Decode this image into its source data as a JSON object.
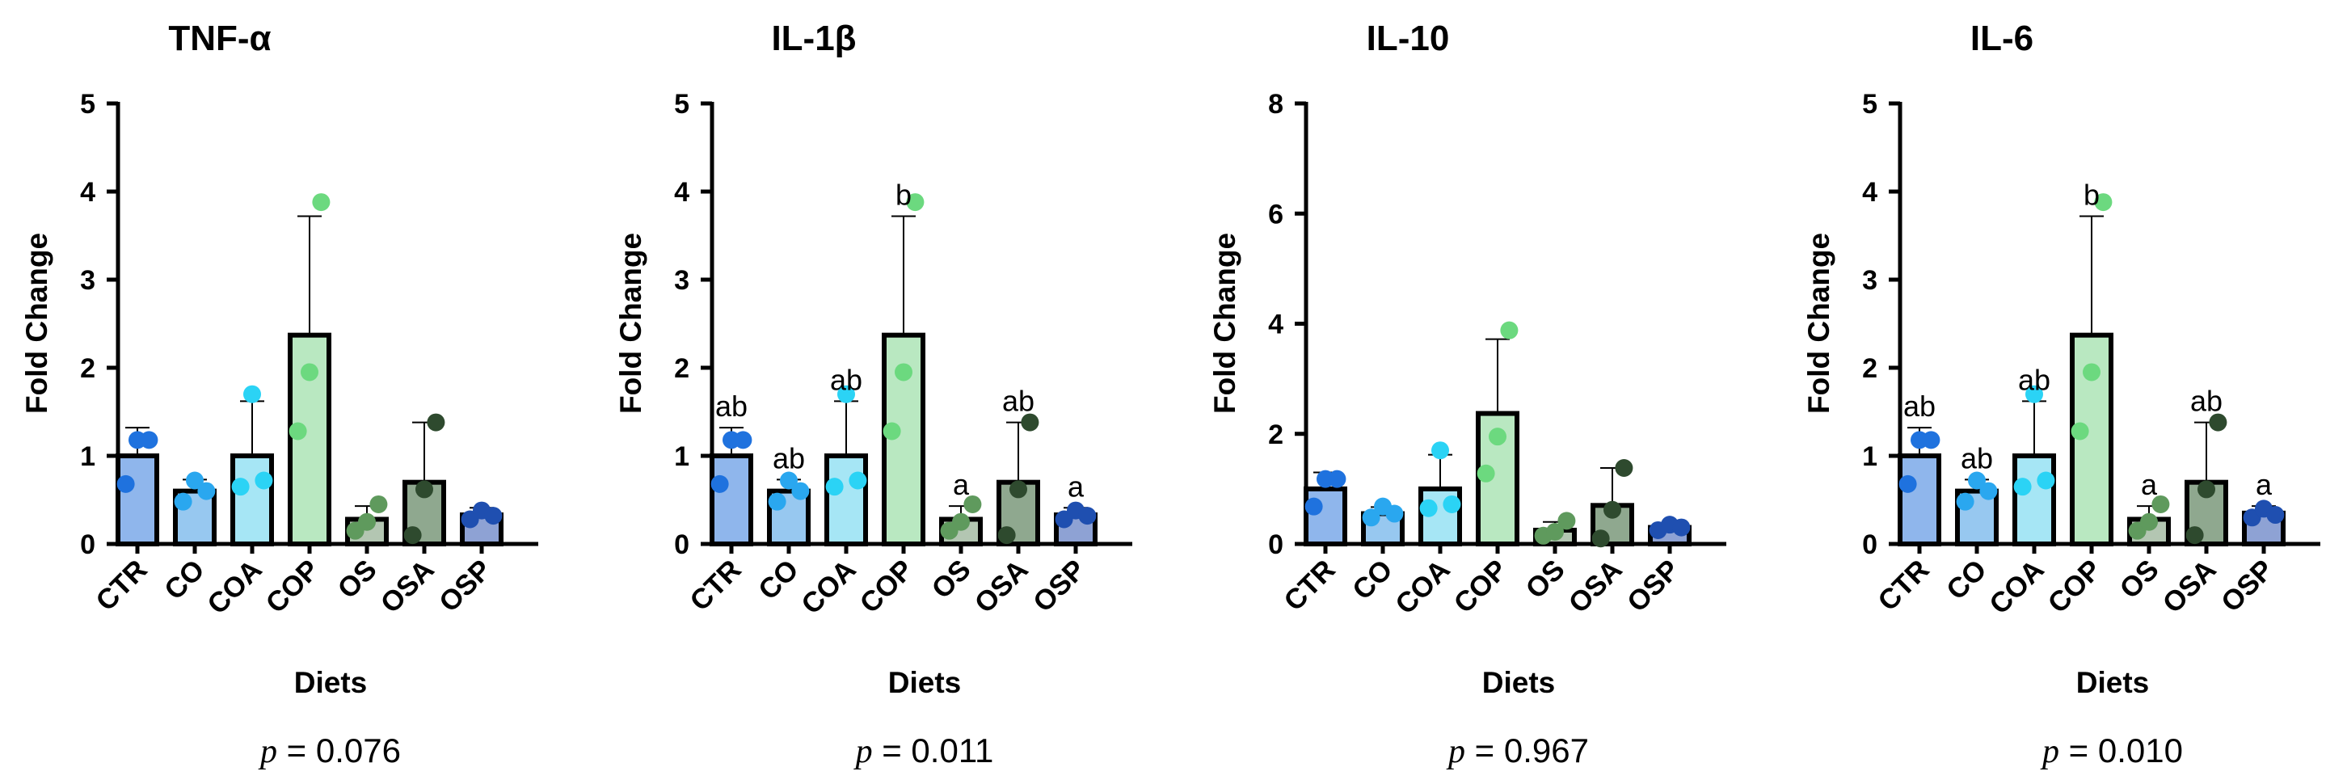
{
  "chart_data": [
    {
      "type": "bar",
      "title": "TNF-α",
      "xlabel": "Diets",
      "ylabel": "Fold Change",
      "ylim": [
        0,
        5
      ],
      "yticks": [
        0,
        1,
        2,
        3,
        4,
        5
      ],
      "categories": [
        "CTR",
        "CO",
        "COA",
        "COP",
        "OS",
        "OSA",
        "OSP"
      ],
      "values": [
        1.0,
        0.6,
        1.0,
        2.37,
        0.28,
        0.7,
        0.33
      ],
      "errors": [
        0.32,
        0.13,
        0.62,
        1.35,
        0.15,
        0.68,
        0.08
      ],
      "points": [
        [
          0.68,
          1.18,
          1.18
        ],
        [
          0.48,
          0.72,
          0.6
        ],
        [
          0.65,
          1.7,
          0.72
        ],
        [
          1.28,
          1.95,
          3.88
        ],
        [
          0.15,
          0.25,
          0.45
        ],
        [
          0.1,
          0.62,
          1.38
        ],
        [
          0.28,
          0.38,
          0.32
        ]
      ],
      "significance": [],
      "p_prefix": "p",
      "p_value": " = 0.076"
    },
    {
      "type": "bar",
      "title": "IL-1β",
      "xlabel": "Diets",
      "ylabel": "Fold Change",
      "ylim": [
        0,
        5
      ],
      "yticks": [
        0,
        1,
        2,
        3,
        4,
        5
      ],
      "categories": [
        "CTR",
        "CO",
        "COA",
        "COP",
        "OS",
        "OSA",
        "OSP"
      ],
      "values": [
        1.0,
        0.6,
        1.0,
        2.37,
        0.28,
        0.7,
        0.33
      ],
      "errors": [
        0.32,
        0.13,
        0.62,
        1.35,
        0.15,
        0.68,
        0.08
      ],
      "points": [
        [
          0.68,
          1.18,
          1.18
        ],
        [
          0.48,
          0.72,
          0.6
        ],
        [
          0.65,
          1.7,
          0.72
        ],
        [
          1.28,
          1.95,
          3.88
        ],
        [
          0.15,
          0.25,
          0.45
        ],
        [
          0.1,
          0.62,
          1.38
        ],
        [
          0.28,
          0.38,
          0.32
        ]
      ],
      "significance": [
        "ab",
        "ab",
        "ab",
        "b",
        "a",
        "ab",
        "a"
      ],
      "p_prefix": "p",
      "p_value": " = 0.011"
    },
    {
      "type": "bar",
      "title": "IL-10",
      "xlabel": "Diets",
      "ylabel": "Fold Change",
      "ylim": [
        0,
        8
      ],
      "yticks": [
        0,
        2,
        4,
        6,
        8
      ],
      "categories": [
        "CTR",
        "CO",
        "COA",
        "COP",
        "OS",
        "OSA",
        "OSP"
      ],
      "values": [
        1.0,
        0.55,
        1.0,
        2.37,
        0.25,
        0.7,
        0.3
      ],
      "errors": [
        0.3,
        0.12,
        0.62,
        1.35,
        0.15,
        0.68,
        0.08
      ],
      "points": [
        [
          0.68,
          1.18,
          1.18
        ],
        [
          0.48,
          0.68,
          0.55
        ],
        [
          0.65,
          1.7,
          0.72
        ],
        [
          1.28,
          1.95,
          3.88
        ],
        [
          0.15,
          0.22,
          0.42
        ],
        [
          0.1,
          0.62,
          1.38
        ],
        [
          0.25,
          0.35,
          0.3
        ]
      ],
      "significance": [],
      "p_prefix": "p",
      "p_value": " = 0.967"
    },
    {
      "type": "bar",
      "title": "IL-6",
      "xlabel": "Diets",
      "ylabel": "Fold Change",
      "ylim": [
        0,
        5
      ],
      "yticks": [
        0,
        1,
        2,
        3,
        4,
        5
      ],
      "categories": [
        "CTR",
        "CO",
        "COA",
        "COP",
        "OS",
        "OSA",
        "OSP"
      ],
      "values": [
        1.0,
        0.6,
        1.0,
        2.37,
        0.28,
        0.7,
        0.35
      ],
      "errors": [
        0.32,
        0.13,
        0.62,
        1.35,
        0.15,
        0.68,
        0.08
      ],
      "points": [
        [
          0.68,
          1.18,
          1.18
        ],
        [
          0.48,
          0.72,
          0.6
        ],
        [
          0.65,
          1.7,
          0.72
        ],
        [
          1.28,
          1.95,
          3.88
        ],
        [
          0.15,
          0.25,
          0.45
        ],
        [
          0.1,
          0.62,
          1.38
        ],
        [
          0.3,
          0.4,
          0.33
        ]
      ],
      "significance": [
        "ab",
        "ab",
        "ab",
        "b",
        "a",
        "ab",
        "a"
      ],
      "p_prefix": "p",
      "p_value": " = 0.010"
    }
  ],
  "colors": {
    "bar_fills": [
      "#8fb6ec",
      "#97c8f0",
      "#a6e6f5",
      "#b9e8c1",
      "#b3c6b2",
      "#8fa88f",
      "#8ea2d4"
    ],
    "point_fills": [
      "#1f72de",
      "#2aa7ef",
      "#2bd3f5",
      "#6cd97f",
      "#5f9a5d",
      "#2e4a2e",
      "#1f4fb0"
    ],
    "ink": "#000000"
  }
}
